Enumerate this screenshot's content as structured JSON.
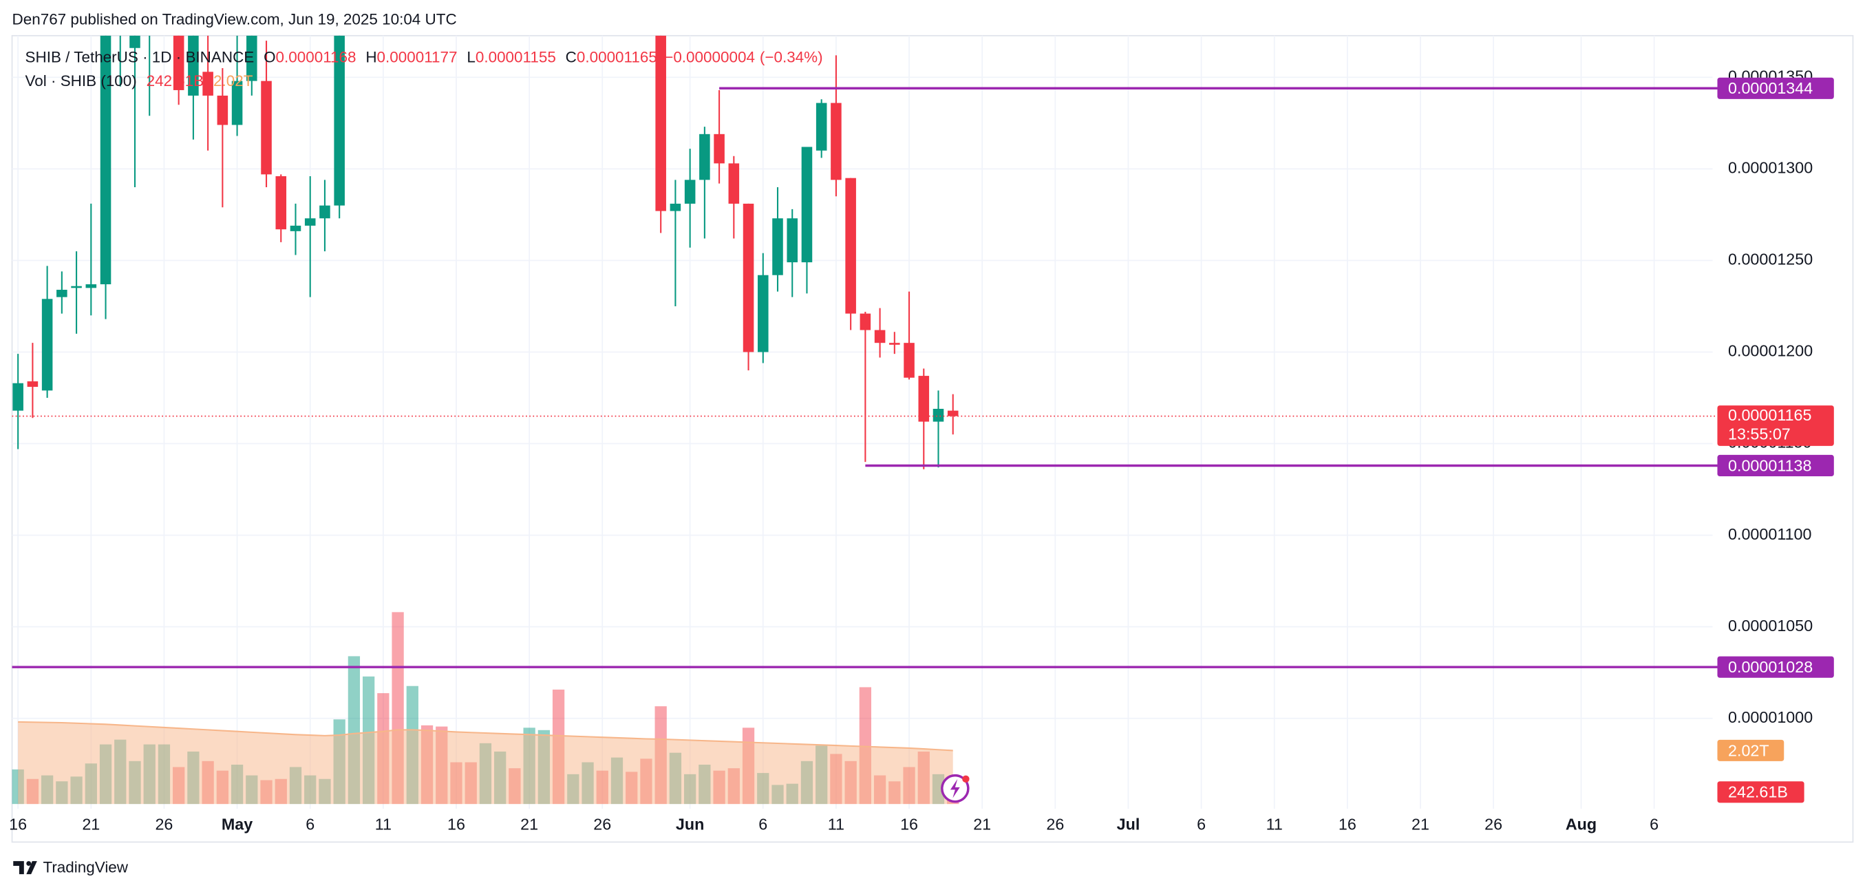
{
  "chart_data": {
    "type": "candlestick",
    "publisher": "Den767 published on TradingView.com, Jun 19, 2025 10:04 UTC",
    "symbol": "SHIB / TetherUS · 1D · BINANCE",
    "ohlc_letters": [
      "O",
      "H",
      "L",
      "C"
    ],
    "change": {
      "value": -4e-08,
      "label": "−0.00000004"
    },
    "change_percent": {
      "value": -0.34,
      "label": "(−0.34%)"
    },
    "volume_title": "Vol · SHIB (100)",
    "brand": "TradingView",
    "countdown": "13:55:07",
    "up_color": "#089981",
    "down_color": "#f23645",
    "level_color": "#9c27b0",
    "ma_color": "#f7b68a",
    "grid": true,
    "x": [
      "Apr 16",
      "Apr 17",
      "Apr 18",
      "Apr 19",
      "Apr 20",
      "Apr 21",
      "Apr 22",
      "Apr 23",
      "Apr 24",
      "Apr 25",
      "Apr 26",
      "Apr 27",
      "Apr 28",
      "Apr 29",
      "Apr 30",
      "May 1",
      "May 2",
      "May 3",
      "May 4",
      "May 5",
      "May 6",
      "May 7",
      "May 8",
      "May 9",
      "May 10",
      "May 11",
      "May 12",
      "May 13",
      "May 14",
      "May 15",
      "May 16",
      "May 17",
      "May 18",
      "May 19",
      "May 20",
      "May 21",
      "May 22",
      "May 23",
      "May 24",
      "May 25",
      "May 26",
      "May 27",
      "May 28",
      "May 29",
      "May 30",
      "May 31",
      "Jun 1",
      "Jun 2",
      "Jun 3",
      "Jun 4",
      "Jun 5",
      "Jun 6",
      "Jun 7",
      "Jun 8",
      "Jun 9",
      "Jun 10",
      "Jun 11",
      "Jun 12",
      "Jun 13",
      "Jun 14",
      "Jun 15",
      "Jun 16",
      "Jun 17",
      "Jun 18",
      "Jun 19"
    ],
    "open": [
      1.168e-05,
      1.184e-05,
      1.179e-05,
      1.23e-05,
      1.235e-05,
      1.235e-05,
      1.237e-05,
      1.385e-05,
      1.366e-05,
      1.385e-05,
      1.4e-05,
      1.4e-05,
      1.34e-05,
      1.353e-05,
      1.34e-05,
      1.324e-05,
      1.348e-05,
      1.348e-05,
      1.296e-05,
      1.266e-05,
      1.269e-05,
      1.273e-05,
      1.28e-05,
      null,
      null,
      null,
      null,
      null,
      null,
      null,
      null,
      null,
      null,
      null,
      null,
      null,
      null,
      null,
      null,
      null,
      null,
      null,
      null,
      null,
      1.4e-05,
      1.277e-05,
      1.281e-05,
      1.294e-05,
      1.319e-05,
      1.303e-05,
      1.281e-05,
      1.2e-05,
      1.242e-05,
      1.249e-05,
      1.249e-05,
      1.31e-05,
      1.336e-05,
      1.295e-05,
      1.221e-05,
      1.212e-05,
      1.205e-05,
      1.205e-05,
      1.187e-05,
      1.162e-05,
      1.168e-05
    ],
    "high": [
      1.199e-05,
      1.205e-05,
      1.247e-05,
      1.244e-05,
      1.255e-05,
      1.281e-05,
      1.4e-05,
      1.42e-05,
      1.43e-05,
      1.42e-05,
      1.415e-05,
      1.41e-05,
      1.4e-05,
      1.38e-05,
      1.355e-05,
      1.38e-05,
      1.4e-05,
      1.37e-05,
      1.297e-05,
      1.281e-05,
      1.296e-05,
      1.294e-05,
      1.42e-05,
      null,
      null,
      null,
      null,
      null,
      null,
      null,
      null,
      null,
      null,
      null,
      null,
      null,
      null,
      null,
      null,
      null,
      null,
      null,
      null,
      null,
      1.42e-05,
      1.294e-05,
      1.311e-05,
      1.323e-05,
      1.343e-05,
      1.307e-05,
      1.281e-05,
      1.254e-05,
      1.29e-05,
      1.278e-05,
      1.312e-05,
      1.338e-05,
      1.362e-05,
      1.295e-05,
      1.222e-05,
      1.224e-05,
      1.211e-05,
      1.233e-05,
      1.191e-05,
      1.179e-05,
      1.177e-05
    ],
    "low": [
      1.147e-05,
      1.164e-05,
      1.175e-05,
      1.221e-05,
      1.21e-05,
      1.22e-05,
      1.218e-05,
      1.345e-05,
      1.29e-05,
      1.329e-05,
      1.38e-05,
      1.335e-05,
      1.316e-05,
      1.31e-05,
      1.279e-05,
      1.318e-05,
      1.34e-05,
      1.29e-05,
      1.26e-05,
      1.253e-05,
      1.23e-05,
      1.255e-05,
      1.273e-05,
      null,
      null,
      null,
      null,
      null,
      null,
      null,
      null,
      null,
      null,
      null,
      null,
      null,
      null,
      null,
      null,
      null,
      null,
      null,
      null,
      null,
      1.265e-05,
      1.225e-05,
      1.257e-05,
      1.262e-05,
      1.292e-05,
      1.262e-05,
      1.19e-05,
      1.194e-05,
      1.233e-05,
      1.23e-05,
      1.232e-05,
      1.306e-05,
      1.285e-05,
      1.212e-05,
      1.14e-05,
      1.197e-05,
      1.199e-05,
      1.185e-05,
      1.136e-05,
      1.137e-05,
      1.155e-05
    ],
    "close": [
      1.183e-05,
      1.181e-05,
      1.229e-05,
      1.234e-05,
      1.236e-05,
      1.237e-05,
      1.38e-05,
      1.4e-05,
      1.41e-05,
      1.4e-05,
      1.405e-05,
      1.343e-05,
      1.39e-05,
      1.34e-05,
      1.324e-05,
      1.348e-05,
      1.39e-05,
      1.297e-05,
      1.267e-05,
      1.269e-05,
      1.273e-05,
      1.28e-05,
      1.4e-05,
      null,
      null,
      null,
      null,
      null,
      null,
      null,
      null,
      null,
      null,
      null,
      null,
      null,
      null,
      null,
      null,
      null,
      null,
      null,
      null,
      null,
      1.277e-05,
      1.281e-05,
      1.294e-05,
      1.319e-05,
      1.303e-05,
      1.281e-05,
      1.2e-05,
      1.242e-05,
      1.273e-05,
      1.273e-05,
      1.312e-05,
      1.336e-05,
      1.294e-05,
      1.221e-05,
      1.212e-05,
      1.205e-05,
      1.204e-05,
      1.186e-05,
      1.162e-05,
      1.169e-05,
      1.165e-05
    ],
    "ylim": [
      9.5e-06,
      1.37e-05
    ],
    "yticks": [
      {
        "value": 1e-05,
        "label": "0.00001000"
      },
      {
        "value": 1.05e-05,
        "label": "0.00001050"
      },
      {
        "value": 1.1e-05,
        "label": "0.00001100"
      },
      {
        "value": 1.15e-05,
        "label": "0.00001150"
      },
      {
        "value": 1.2e-05,
        "label": "0.00001200"
      },
      {
        "value": 1.25e-05,
        "label": "0.00001250"
      },
      {
        "value": 1.3e-05,
        "label": "0.00001300"
      },
      {
        "value": 1.35e-05,
        "label": "0.00001350"
      }
    ],
    "xlim": [
      "Apr 16",
      "Aug 10"
    ],
    "xticks": [
      {
        "value": "Apr 16",
        "label": "16"
      },
      {
        "value": "Apr 21",
        "label": "21"
      },
      {
        "value": "Apr 26",
        "label": "26"
      },
      {
        "value": "May 1",
        "label": "May"
      },
      {
        "value": "May 6",
        "label": "6"
      },
      {
        "value": "May 11",
        "label": "11"
      },
      {
        "value": "May 16",
        "label": "16"
      },
      {
        "value": "May 21",
        "label": "21"
      },
      {
        "value": "May 26",
        "label": "26"
      },
      {
        "value": "Jun 1",
        "label": "Jun"
      },
      {
        "value": "Jun 6",
        "label": "6"
      },
      {
        "value": "Jun 11",
        "label": "11"
      },
      {
        "value": "Jun 16",
        "label": "16"
      },
      {
        "value": "Jun 21",
        "label": "21"
      },
      {
        "value": "Jun 26",
        "label": "26"
      },
      {
        "value": "Jul 1",
        "label": "Jul"
      },
      {
        "value": "Jul 6",
        "label": "6"
      },
      {
        "value": "Jul 11",
        "label": "11"
      },
      {
        "value": "Jul 16",
        "label": "16"
      },
      {
        "value": "Jul 21",
        "label": "21"
      },
      {
        "value": "Jul 26",
        "label": "26"
      },
      {
        "value": "Aug 1",
        "label": "Aug"
      },
      {
        "value": "Aug 6",
        "label": "6"
      }
    ],
    "levels": [
      {
        "value": 1.344e-05,
        "start": "Jun 3"
      },
      {
        "value": 1.138e-05,
        "start": "Jun 13"
      },
      {
        "value": 1.028e-05
      }
    ],
    "volume": {
      "ylim": [
        0,
        7500000000000
      ],
      "values": [
        1305000000000.0,
        945000000000.0,
        1080000000000.0,
        855000000000.0,
        1035000000000.0,
        1530000000000.0,
        2250000000000.0,
        2430000000000.0,
        1620000000000.0,
        2250000000000.0,
        2250000000000.0,
        1395000000000.0,
        1980000000000.0,
        1620000000000.0,
        1260000000000.0,
        1485000000000.0,
        1080000000000.0,
        900000000000.0,
        945000000000.0,
        1395000000000.0,
        1080000000000.0,
        945000000000.0,
        3195000000000.0,
        5580000000000.0,
        4815000000000.0,
        4185000000000.0,
        7245000000000.0,
        4455000000000.0,
        2970000000000.0,
        2925000000000.0,
        1575000000000.0,
        1575000000000.0,
        2295000000000.0,
        1980000000000.0,
        1350000000000.0,
        2880000000000.0,
        2790000000000.0,
        4320000000000.0,
        1125000000000.0,
        1575000000000.0,
        1260000000000.0,
        1755000000000.0,
        1215000000000.0,
        1710000000000.0,
        3690000000000.0,
        1935000000000.0,
        1125000000000.0,
        1485000000000.0,
        1260000000000.0,
        1350000000000.0,
        2880000000000.0,
        1170000000000.0,
        720000000000.0,
        765000000000.0,
        1620000000000.0,
        2205000000000.0,
        1890000000000.0,
        1620000000000.0,
        4410000000000.0,
        1080000000000.0,
        855000000000.0,
        1395000000000.0,
        1980000000000.0,
        1125000000000.0,
        242610000000.0
      ],
      "directions": [
        "up",
        "down",
        "up",
        "up",
        "up",
        "up",
        "up",
        "up",
        "up",
        "up",
        "up",
        "down",
        "up",
        "down",
        "down",
        "up",
        "up",
        "down",
        "down",
        "up",
        "up",
        "up",
        "up",
        "up",
        "up",
        "down",
        "down",
        "up",
        "down",
        "down",
        "down",
        "down",
        "up",
        "up",
        "down",
        "up",
        "up",
        "down",
        "up",
        "up",
        "down",
        "up",
        "down",
        "down",
        "down",
        "up",
        "up",
        "up",
        "down",
        "down",
        "down",
        "up",
        "up",
        "up",
        "up",
        "up",
        "down",
        "down",
        "down",
        "down",
        "down",
        "down",
        "down",
        "up",
        "down"
      ],
      "ma_values": [
        3100000000000.0,
        3090000000000.0,
        3080000000000.0,
        3070000000000.0,
        3050000000000.0,
        3030000000000.0,
        3010000000000.0,
        2980000000000.0,
        2950000000000.0,
        2920000000000.0,
        2890000000000.0,
        2860000000000.0,
        2830000000000.0,
        2800000000000.0,
        2770000000000.0,
        2740000000000.0,
        2710000000000.0,
        2680000000000.0,
        2650000000000.0,
        2620000000000.0,
        2600000000000.0,
        2580000000000.0,
        2600000000000.0,
        2660000000000.0,
        2700000000000.0,
        2740000000000.0,
        2800000000000.0,
        2800000000000.0,
        2780000000000.0,
        2750000000000.0,
        2720000000000.0,
        2700000000000.0,
        2680000000000.0,
        2660000000000.0,
        2640000000000.0,
        2620000000000.0,
        2600000000000.0,
        2580000000000.0,
        2560000000000.0,
        2540000000000.0,
        2520000000000.0,
        2500000000000.0,
        2480000000000.0,
        2460000000000.0,
        2450000000000.0,
        2430000000000.0,
        2410000000000.0,
        2390000000000.0,
        2370000000000.0,
        2350000000000.0,
        2330000000000.0,
        2310000000000.0,
        2290000000000.0,
        2270000000000.0,
        2250000000000.0,
        2230000000000.0,
        2210000000000.0,
        2190000000000.0,
        2170000000000.0,
        2150000000000.0,
        2130000000000.0,
        2110000000000.0,
        2080000000000.0,
        2050000000000.0,
        2020000000000.0
      ],
      "last_value_label": "242.61B",
      "last_ma_label": "2.02T"
    }
  }
}
